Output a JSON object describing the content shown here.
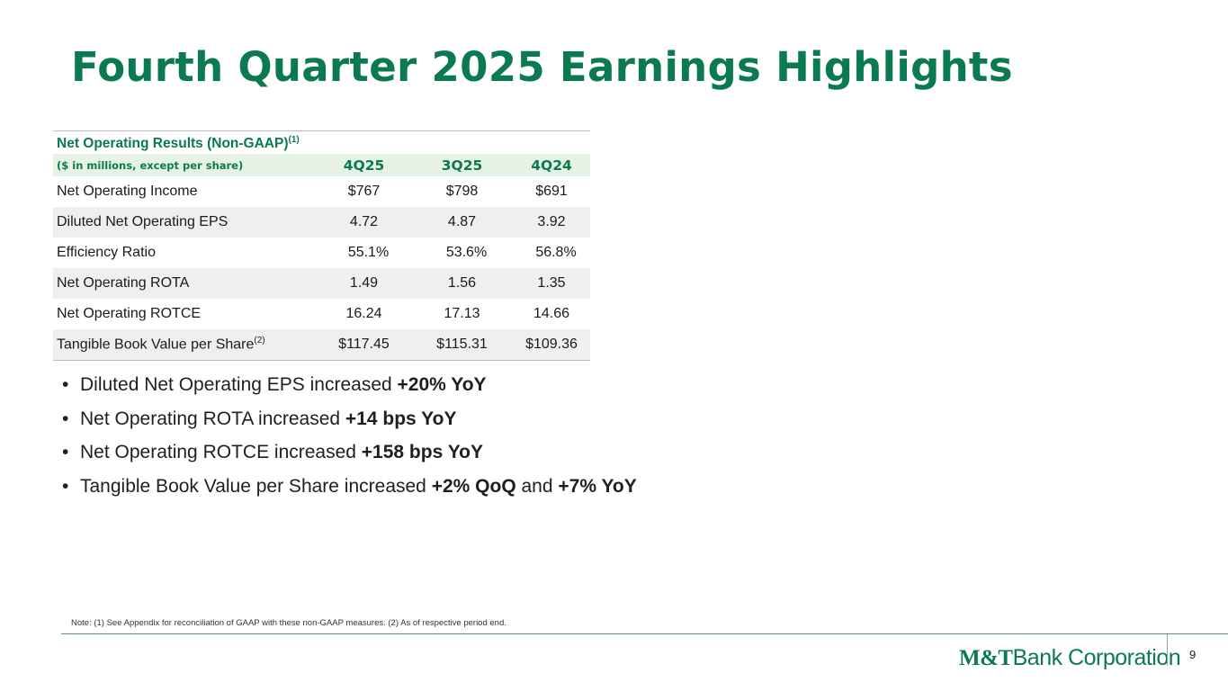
{
  "slide": {
    "title": "Fourth Quarter 2025 Earnings Highlights",
    "page_number": "9"
  },
  "table": {
    "caption": "Net Operating Results (Non-GAAP)",
    "caption_note": "(1)",
    "units_label": "($ in millions, except per share)",
    "columns": [
      "4Q25",
      "3Q25",
      "4Q24"
    ],
    "rows": [
      {
        "label": "Net Operating Income",
        "note": "",
        "values": [
          "$767",
          "$798",
          "$691"
        ]
      },
      {
        "label": "Diluted Net Operating EPS",
        "note": "",
        "values": [
          "4.72",
          "4.87",
          "3.92"
        ]
      },
      {
        "label": "Efficiency Ratio",
        "note": "",
        "values": [
          "55.1%",
          "53.6%",
          "56.8%"
        ]
      },
      {
        "label": "Net Operating ROTA",
        "note": "",
        "values": [
          "1.49",
          "1.56",
          "1.35"
        ]
      },
      {
        "label": "Net Operating ROTCE",
        "note": "",
        "values": [
          "16.24",
          "17.13",
          "14.66"
        ]
      },
      {
        "label": "Tangible Book Value per Share",
        "note": "(2)",
        "values": [
          "$117.45",
          "$115.31",
          "$109.36"
        ]
      }
    ]
  },
  "bullets": [
    {
      "text": "Diluted Net Operating EPS increased ",
      "bold1": "+20% YoY",
      "mid": "",
      "bold2": ""
    },
    {
      "text": "Net Operating ROTA increased ",
      "bold1": "+14 bps YoY",
      "mid": "",
      "bold2": ""
    },
    {
      "text": "Net Operating ROTCE increased ",
      "bold1": "+158 bps YoY",
      "mid": "",
      "bold2": ""
    },
    {
      "text": "Tangible Book Value per Share increased ",
      "bold1": "+2% QoQ",
      "mid": " and ",
      "bold2": "+7% YoY"
    }
  ],
  "bullet_glyph": "•",
  "footnote": "Note: (1) See Appendix for reconciliation of GAAP with these non-GAAP measures. (2) As of respective period end.",
  "logo": {
    "mark": "M&T",
    "name": "Bank Corporation"
  },
  "colors": {
    "brand_green": "#0b7a4e",
    "header_fill": "#e6f2e6",
    "row_alt": "#efefef"
  }
}
